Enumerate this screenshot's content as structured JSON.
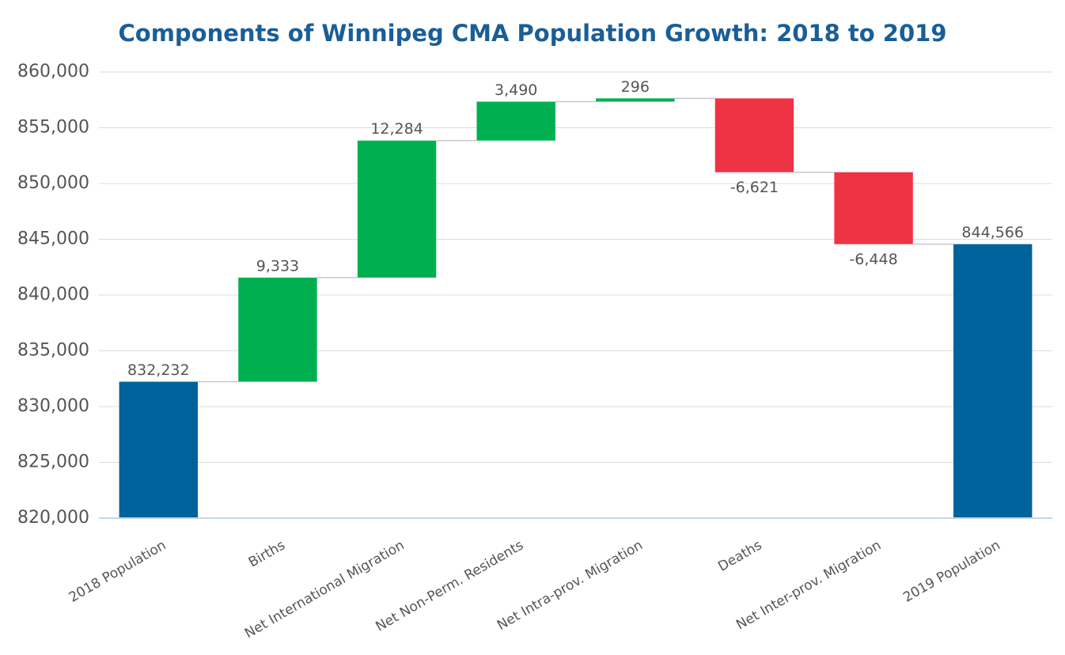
{
  "chart_data": {
    "type": "waterfall",
    "title": "Components of Winnipeg CMA Population Growth: 2018 to 2019",
    "categories": [
      "2018 Population",
      "Births",
      "Net International Migration",
      "Net Non-Perm. Residents",
      "Net Intra-prov. Migration",
      "Deaths",
      "Net Inter-prov. Migration",
      "2019 Population"
    ],
    "values": [
      832232,
      9333,
      12284,
      3490,
      296,
      -6621,
      -6448,
      844566
    ],
    "value_labels": [
      "832,232",
      "9,333",
      "12,284",
      "3,490",
      "296",
      "-6,621",
      "-6,448",
      "844,566"
    ],
    "measure": [
      "total",
      "relative",
      "relative",
      "relative",
      "relative",
      "relative",
      "relative",
      "total"
    ],
    "colors": {
      "total": "#00629b",
      "increase": "#00b050",
      "decrease": "#ee3344"
    },
    "ylim": [
      820000,
      860000
    ],
    "yticks": [
      {
        "value": 820000,
        "label": "820,000"
      },
      {
        "value": 825000,
        "label": "825,000"
      },
      {
        "value": 830000,
        "label": "830,000"
      },
      {
        "value": 835000,
        "label": "835,000"
      },
      {
        "value": 840000,
        "label": "840,000"
      },
      {
        "value": 845000,
        "label": "845,000"
      },
      {
        "value": 850000,
        "label": "850,000"
      },
      {
        "value": 855000,
        "label": "855,000"
      },
      {
        "value": 860000,
        "label": "860,000"
      }
    ],
    "grid": true
  }
}
